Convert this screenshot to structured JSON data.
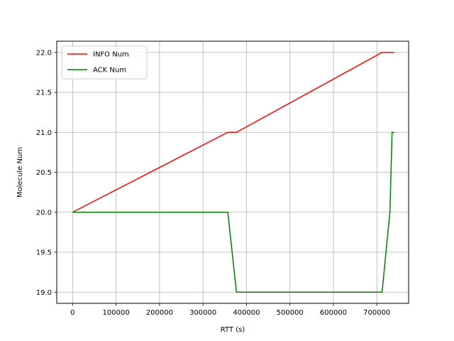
{
  "chart_data": {
    "type": "line",
    "title": "",
    "xlabel": "RTT (s)",
    "ylabel": "Molecule Num",
    "xlim": [
      -36500,
      773000
    ],
    "ylim": [
      18.86,
      22.14
    ],
    "xticks": [
      0,
      100000,
      200000,
      300000,
      400000,
      500000,
      600000,
      700000
    ],
    "xtick_labels": [
      "0",
      "100000",
      "200000",
      "300000",
      "400000",
      "500000",
      "600000",
      "700000"
    ],
    "yticks": [
      19.0,
      19.5,
      20.0,
      20.5,
      21.0,
      21.5,
      22.0
    ],
    "ytick_labels": [
      "19.0",
      "19.5",
      "20.0",
      "20.5",
      "21.0",
      "21.5",
      "22.0"
    ],
    "grid": true,
    "legend": "upper-left",
    "series": [
      {
        "name": "INFO Num",
        "color": "#ff0000",
        "x": [
          0,
          357000,
          377000,
          712000,
          740000
        ],
        "y": [
          20.0,
          21.0,
          21.0,
          22.0,
          22.0
        ]
      },
      {
        "name": "ACK Num",
        "color": "#008000",
        "x": [
          0,
          357000,
          377000,
          712000,
          730000,
          735000,
          740000
        ],
        "y": [
          20.0,
          20.0,
          19.0,
          19.0,
          20.0,
          21.0,
          21.0
        ]
      }
    ]
  }
}
